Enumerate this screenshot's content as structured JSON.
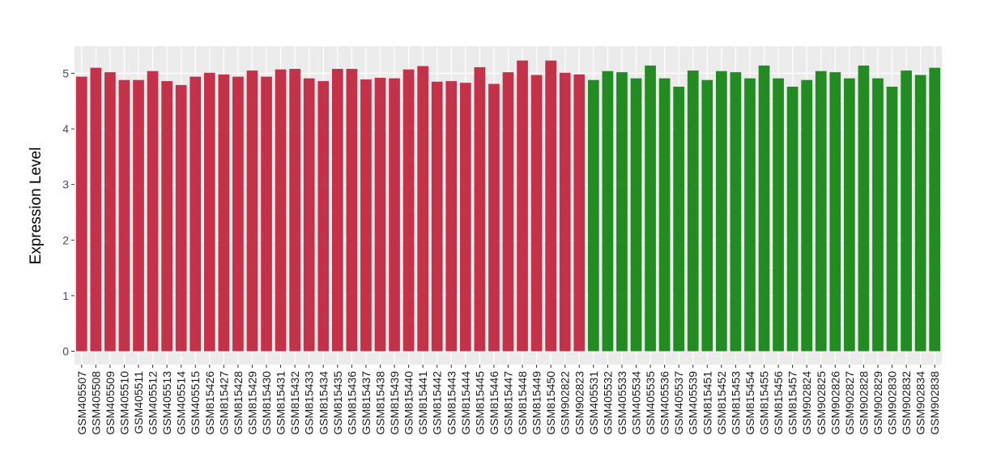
{
  "chart_data": {
    "type": "bar",
    "title": "",
    "xlabel": "",
    "ylabel": "Expression Level",
    "ylim": [
      0,
      5.45
    ],
    "yticks": [
      0,
      1,
      2,
      3,
      4,
      5
    ],
    "grid": true,
    "legend": "none",
    "colors": {
      "group1": "#C43249",
      "group2": "#228B22",
      "panel": "#EBEBEB",
      "grid": "#FFFFFF"
    },
    "categories": [
      "GSM405507",
      "GSM405508",
      "GSM405509",
      "GSM405510",
      "GSM405511",
      "GSM405512",
      "GSM405513",
      "GSM405514",
      "GSM405515",
      "GSM815426",
      "GSM815427",
      "GSM815428",
      "GSM815429",
      "GSM815430",
      "GSM815431",
      "GSM815432",
      "GSM815433",
      "GSM815434",
      "GSM815435",
      "GSM815436",
      "GSM815437",
      "GSM815438",
      "GSM815439",
      "GSM815440",
      "GSM815441",
      "GSM815442",
      "GSM815443",
      "GSM815444",
      "GSM815445",
      "GSM815446",
      "GSM815447",
      "GSM815448",
      "GSM815449",
      "GSM815450",
      "GSM902822",
      "GSM902823",
      "GSM405531",
      "GSM405532",
      "GSM405533",
      "GSM405534",
      "GSM405535",
      "GSM405536",
      "GSM405537",
      "GSM405539",
      "GSM815451",
      "GSM815452",
      "GSM815453",
      "GSM815454",
      "GSM815455",
      "GSM815456",
      "GSM815457",
      "GSM902824",
      "GSM902825",
      "GSM902826",
      "GSM902827",
      "GSM902828",
      "GSM902829",
      "GSM902830",
      "GSM902832",
      "GSM902834",
      "GSM902838"
    ],
    "values": [
      4.94,
      5.1,
      5.02,
      4.88,
      4.88,
      5.04,
      4.86,
      4.79,
      4.94,
      5.01,
      4.98,
      4.94,
      5.05,
      4.94,
      5.07,
      5.08,
      4.91,
      4.86,
      5.08,
      5.08,
      4.89,
      4.92,
      4.91,
      5.07,
      5.13,
      4.85,
      4.86,
      4.83,
      5.11,
      4.81,
      5.02,
      5.23,
      4.97,
      5.23,
      5.01,
      4.98,
      4.88,
      5.04,
      5.02,
      4.91,
      5.14,
      4.91,
      4.76,
      5.05,
      4.88,
      5.04,
      5.02,
      4.91,
      5.14,
      4.91,
      4.76,
      4.88,
      5.04,
      5.02,
      4.91,
      5.14,
      4.91,
      4.76,
      5.05,
      4.97,
      5.1
    ],
    "groups": [
      "group1",
      "group1",
      "group1",
      "group1",
      "group1",
      "group1",
      "group1",
      "group1",
      "group1",
      "group1",
      "group1",
      "group1",
      "group1",
      "group1",
      "group1",
      "group1",
      "group1",
      "group1",
      "group1",
      "group1",
      "group1",
      "group1",
      "group1",
      "group1",
      "group1",
      "group1",
      "group1",
      "group1",
      "group1",
      "group1",
      "group1",
      "group1",
      "group1",
      "group1",
      "group1",
      "group1",
      "group2",
      "group2",
      "group2",
      "group2",
      "group2",
      "group2",
      "group2",
      "group2",
      "group2",
      "group2",
      "group2",
      "group2",
      "group2",
      "group2",
      "group2",
      "group2",
      "group2",
      "group2",
      "group2",
      "group2",
      "group2",
      "group2",
      "group2",
      "group2",
      "group2"
    ]
  }
}
